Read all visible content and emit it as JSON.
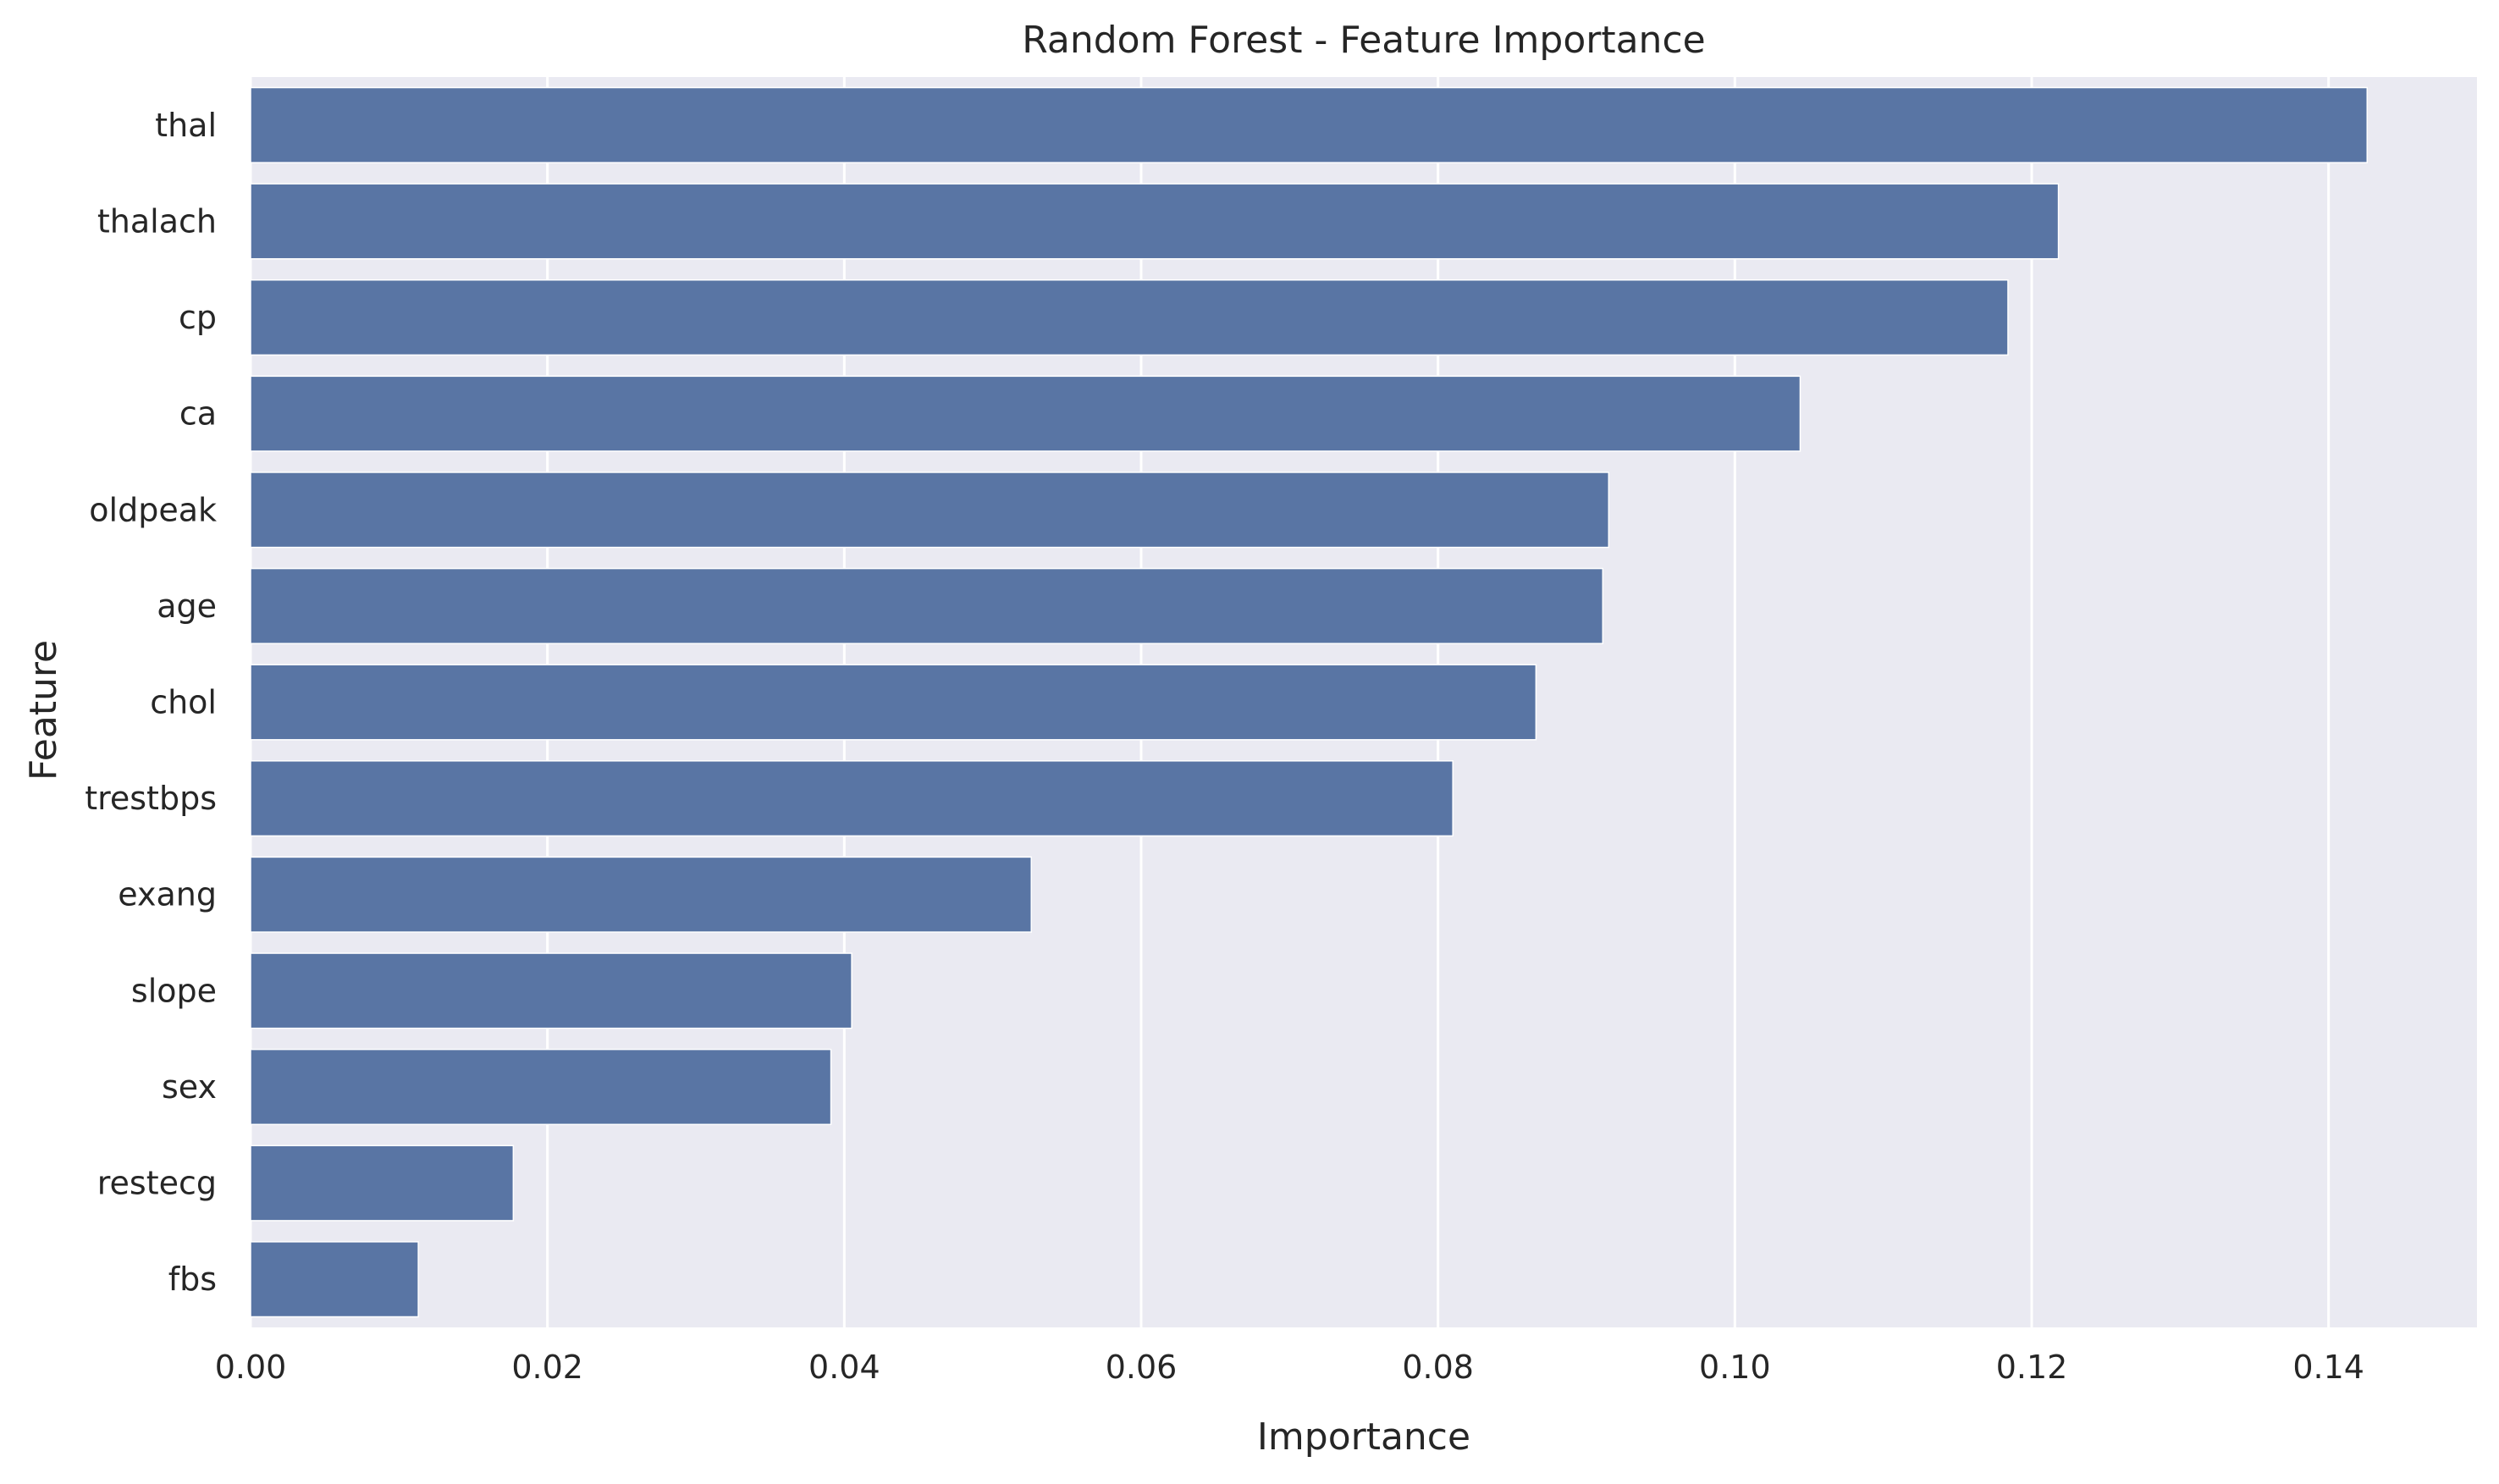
{
  "chart_data": {
    "type": "bar",
    "orientation": "horizontal",
    "title": "Random Forest - Feature Importance",
    "xlabel": "Importance",
    "ylabel": "Feature",
    "categories": [
      "thal",
      "thalach",
      "cp",
      "ca",
      "oldpeak",
      "age",
      "chol",
      "trestbps",
      "exang",
      "slope",
      "sex",
      "restecg",
      "fbs"
    ],
    "values": [
      0.1426,
      0.1218,
      0.1184,
      0.1044,
      0.0915,
      0.0911,
      0.0866,
      0.081,
      0.0526,
      0.0405,
      0.0391,
      0.0177,
      0.0113
    ],
    "xlim": [
      0,
      0.15
    ],
    "xticks": [
      0.0,
      0.02,
      0.04,
      0.06,
      0.08,
      0.1,
      0.12,
      0.14
    ],
    "xtick_labels": [
      "0.00",
      "0.02",
      "0.04",
      "0.06",
      "0.08",
      "0.10",
      "0.12",
      "0.14"
    ],
    "grid": true,
    "colors": {
      "bar": "#5975a4",
      "plot_background": "#eaeaf2",
      "grid": "#ffffff"
    }
  }
}
